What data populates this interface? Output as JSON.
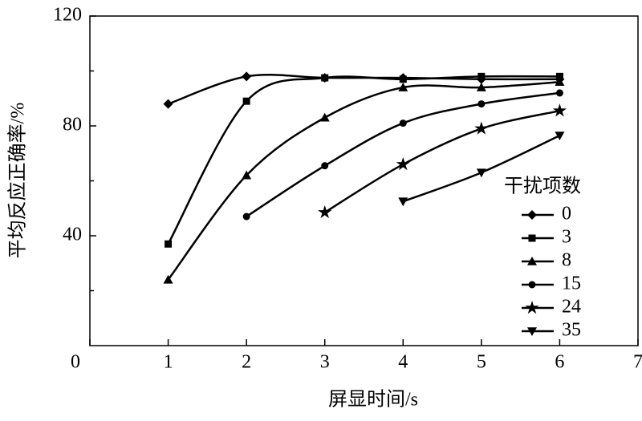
{
  "chart_data": {
    "type": "line",
    "x_label": "屏显时间/s",
    "y_label": "平均反应正确率/%",
    "legend_title": "干扰项数",
    "legend_position": "right",
    "x": [
      1,
      2,
      3,
      4,
      5,
      6
    ],
    "xlim": [
      0,
      7
    ],
    "xticks": [
      0,
      1,
      2,
      3,
      4,
      5,
      6,
      7
    ],
    "ylim": [
      0,
      120
    ],
    "yticks": [
      40,
      80,
      120
    ],
    "yminorticks": [
      20,
      60,
      100
    ],
    "series": [
      {
        "name": "0",
        "color": "#000000",
        "marker": "diamond",
        "values": [
          88,
          98,
          97.5,
          97.5,
          97,
          97
        ]
      },
      {
        "name": "3",
        "color": "#000000",
        "marker": "square",
        "values": [
          37,
          89,
          97.5,
          97,
          98,
          98
        ]
      },
      {
        "name": "8",
        "color": "#000000",
        "marker": "triangle-up",
        "values": [
          24,
          62,
          83,
          94,
          94,
          96
        ]
      },
      {
        "name": "15",
        "color": "#000000",
        "marker": "circle",
        "values": [
          null,
          47,
          65.5,
          81,
          88,
          92
        ]
      },
      {
        "name": "24",
        "color": "#000000",
        "marker": "star",
        "values": [
          null,
          null,
          48.5,
          66,
          79,
          85.5
        ]
      },
      {
        "name": "35",
        "color": "#000000",
        "marker": "triangle-down",
        "values": [
          null,
          null,
          null,
          52.5,
          63,
          76.5
        ]
      }
    ]
  }
}
